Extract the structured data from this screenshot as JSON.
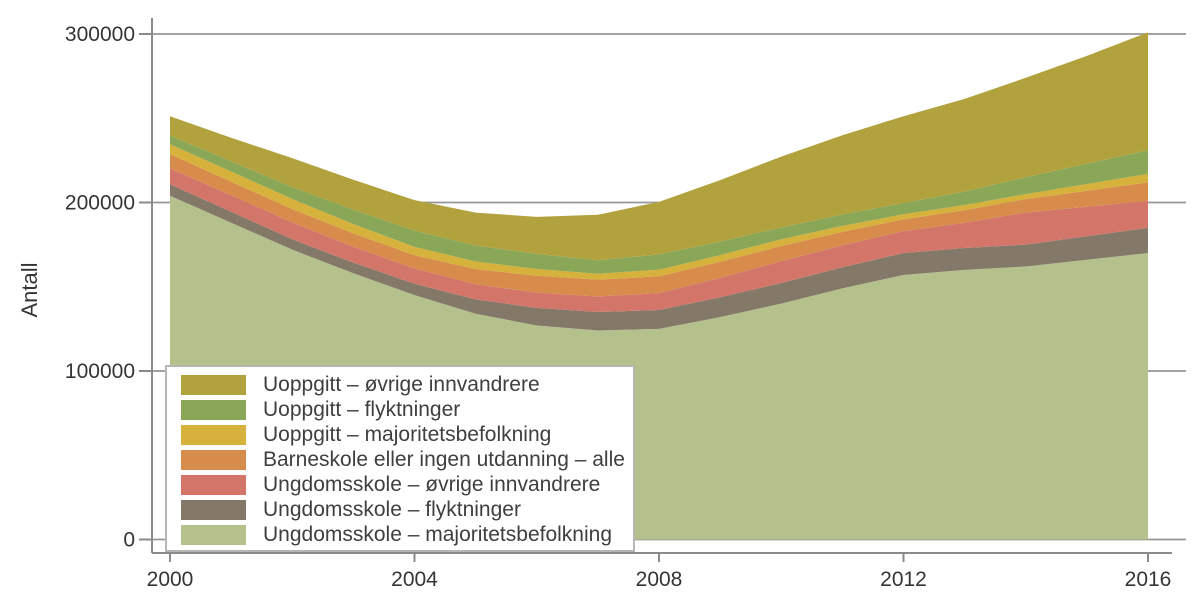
{
  "chart_data": {
    "type": "area",
    "stacked": true,
    "title": "",
    "xlabel": "",
    "ylabel": "Antall",
    "ylim": [
      0,
      300000
    ],
    "yticks": [
      0,
      100000,
      200000,
      300000
    ],
    "ytick_labels": [
      "0",
      "100000",
      "200000",
      "300000"
    ],
    "xticks": [
      2000,
      2004,
      2008,
      2012,
      2016
    ],
    "xtick_labels": [
      "2000",
      "2004",
      "2008",
      "2012",
      "2016"
    ],
    "grid": true,
    "legend_position": "inside-bottom-left",
    "x": [
      2000,
      2001,
      2002,
      2003,
      2004,
      2005,
      2006,
      2007,
      2008,
      2009,
      2010,
      2011,
      2012,
      2013,
      2014,
      2015,
      2016
    ],
    "series": [
      {
        "name": "Ungdomsskole – majoritetsbefolkning",
        "color": "#b5c18c",
        "values": [
          204000,
          188000,
          172000,
          158000,
          145000,
          134000,
          127000,
          124000,
          125000,
          132000,
          140000,
          149000,
          157000,
          160000,
          162000,
          166000,
          170000
        ]
      },
      {
        "name": "Ungdomsskole – flyktninger",
        "color": "#847968",
        "values": [
          6800,
          6500,
          6200,
          6300,
          6800,
          8500,
          10500,
          11000,
          11200,
          11800,
          12200,
          12600,
          13000,
          13000,
          13000,
          14000,
          15000
        ]
      },
      {
        "name": "Ungdomsskole – øvrige innvandrere",
        "color": "#d37669",
        "values": [
          9500,
          9800,
          10000,
          9500,
          9000,
          9000,
          9000,
          9200,
          10000,
          11500,
          13000,
          13000,
          13000,
          15000,
          19000,
          17500,
          16000
        ]
      },
      {
        "name": "Barneskole eller ingen utdanning – alle",
        "color": "#d78c4b",
        "values": [
          8400,
          8100,
          7900,
          7900,
          7900,
          9000,
          10000,
          10000,
          10000,
          9500,
          9000,
          8000,
          7000,
          7500,
          8000,
          9500,
          11000
        ]
      },
      {
        "name": "Uoppgitt – majoritetsbefolkning",
        "color": "#d6b23c",
        "values": [
          5900,
          6000,
          6000,
          5500,
          5000,
          4500,
          4000,
          3500,
          4000,
          4000,
          4000,
          3500,
          3000,
          3000,
          3000,
          4000,
          5000
        ]
      },
      {
        "name": "Uoppgitt – flyktninger",
        "color": "#8aa757",
        "values": [
          5200,
          6000,
          7000,
          8500,
          9600,
          9500,
          9000,
          8000,
          9000,
          8000,
          7000,
          6800,
          6600,
          8000,
          10000,
          12000,
          14000
        ]
      },
      {
        "name": "Uoppgitt – øvrige innvandrere",
        "color": "#b2a23e",
        "values": [
          11400,
          14000,
          17200,
          17800,
          18100,
          19500,
          22000,
          27000,
          31200,
          36500,
          42000,
          47000,
          51600,
          55000,
          59000,
          64000,
          70000
        ]
      }
    ]
  },
  "colors": {
    "background": "#ffffff",
    "axis_line": "#8a8a8a",
    "grid_line": "#969696",
    "tick_text": "#353535",
    "legend_border": "#b6b6b6"
  }
}
